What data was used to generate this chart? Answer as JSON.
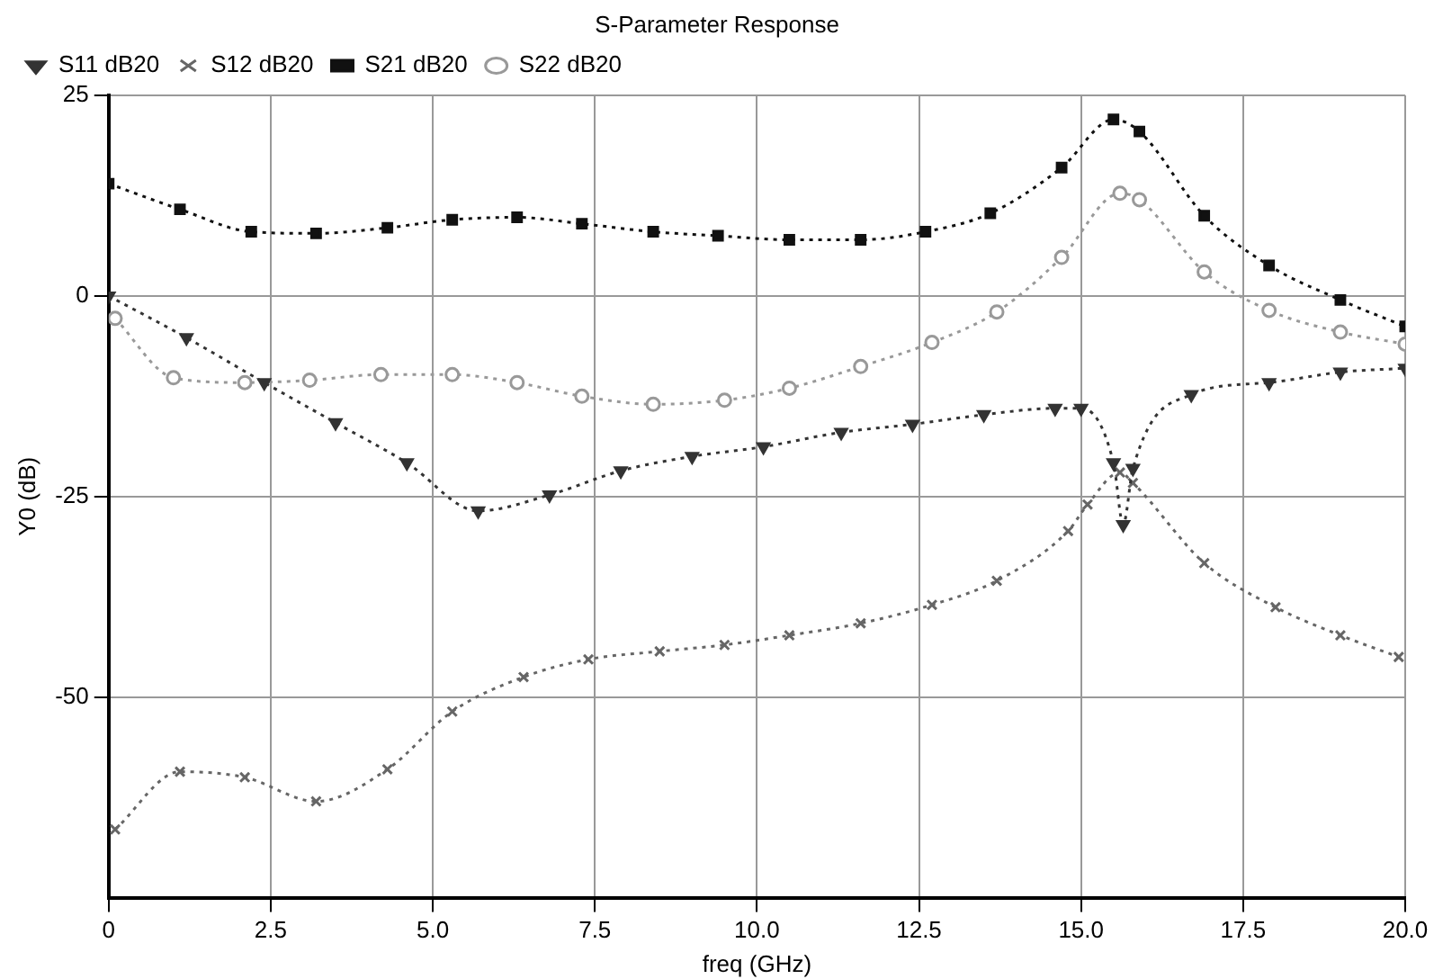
{
  "chart_data": {
    "type": "line",
    "title": "S-Parameter Response",
    "xlabel": "freq (GHz)",
    "ylabel": "Y0 (dB)",
    "xlim": [
      0,
      20
    ],
    "xticks": [
      0,
      2.5,
      {
        "value": 5,
        "label": "5.0"
      },
      7.5,
      {
        "value": 10,
        "label": "10.0"
      },
      12.5,
      {
        "value": 15,
        "label": "15.0"
      },
      17.5,
      {
        "value": 20,
        "label": "20.0"
      }
    ],
    "ylim": [
      -75,
      25
    ],
    "yticks": [
      -50,
      -25,
      0,
      25
    ],
    "grid": true,
    "legend": "top left",
    "line_style": "dotted",
    "series": [
      {
        "name": "S11 dB20",
        "color": "#333333",
        "marker": "triangle",
        "x": [
          0,
          1.2,
          2.4,
          3.5,
          4.6,
          5.7,
          6.8,
          7.9,
          9.0,
          10.1,
          11.3,
          12.4,
          13.5,
          14.6,
          15.0,
          15.5,
          15.65,
          15.8,
          16.7,
          17.9,
          19.0,
          20
        ],
        "values": [
          0,
          -5.2,
          -10.8,
          -15.8,
          -20.8,
          -26.8,
          -24.8,
          -21.8,
          -20,
          -18.8,
          -17,
          -16,
          -14.8,
          -14,
          -14,
          -20.8,
          -28.5,
          -21.5,
          -12.3,
          -10.8,
          -9.5,
          -9
        ]
      },
      {
        "name": "S12 dB20",
        "color": "#666666",
        "marker": "cross",
        "x": [
          0.1,
          1.1,
          2.1,
          3.2,
          4.3,
          5.3,
          6.4,
          7.4,
          8.5,
          9.5,
          10.5,
          11.6,
          12.7,
          13.7,
          14.8,
          15.1,
          15.6,
          15.8,
          16.9,
          18.0,
          19.0,
          19.9
        ],
        "values": [
          -66.5,
          -59.3,
          -60,
          -63,
          -59,
          -51.8,
          -47.5,
          -45.3,
          -44.3,
          -43.5,
          -42.3,
          -40.8,
          -38.5,
          -35.5,
          -29.3,
          -26,
          -22,
          -23.3,
          -33.3,
          -38.8,
          -42.3,
          -45
        ]
      },
      {
        "name": "S21 dB20",
        "color": "#111111",
        "marker": "square",
        "x": [
          0,
          1.1,
          2.2,
          3.2,
          4.3,
          5.3,
          6.3,
          7.3,
          8.4,
          9.4,
          10.5,
          11.6,
          12.6,
          13.6,
          14.7,
          15.5,
          15.9,
          16.9,
          17.9,
          19.0,
          20
        ],
        "values": [
          14,
          10.8,
          8,
          7.8,
          8.5,
          9.5,
          9.8,
          9,
          8,
          7.5,
          7,
          7,
          8,
          10.3,
          16,
          22,
          20.5,
          10,
          3.8,
          -0.5,
          -3.8
        ]
      },
      {
        "name": "S22 dB20",
        "color": "#999999",
        "marker": "circle",
        "x": [
          0.1,
          1.0,
          2.1,
          3.1,
          4.2,
          5.3,
          6.3,
          7.3,
          8.4,
          9.5,
          10.5,
          11.6,
          12.7,
          13.7,
          14.7,
          15.6,
          15.9,
          16.9,
          17.9,
          19.0,
          20
        ],
        "values": [
          -2.8,
          -10.2,
          -10.8,
          -10.5,
          -9.8,
          -9.8,
          -10.8,
          -12.5,
          -13.5,
          -13,
          -11.5,
          -8.8,
          -5.8,
          -2,
          4.8,
          12.8,
          12,
          3,
          -1.8,
          -4.5,
          -6
        ]
      }
    ]
  }
}
